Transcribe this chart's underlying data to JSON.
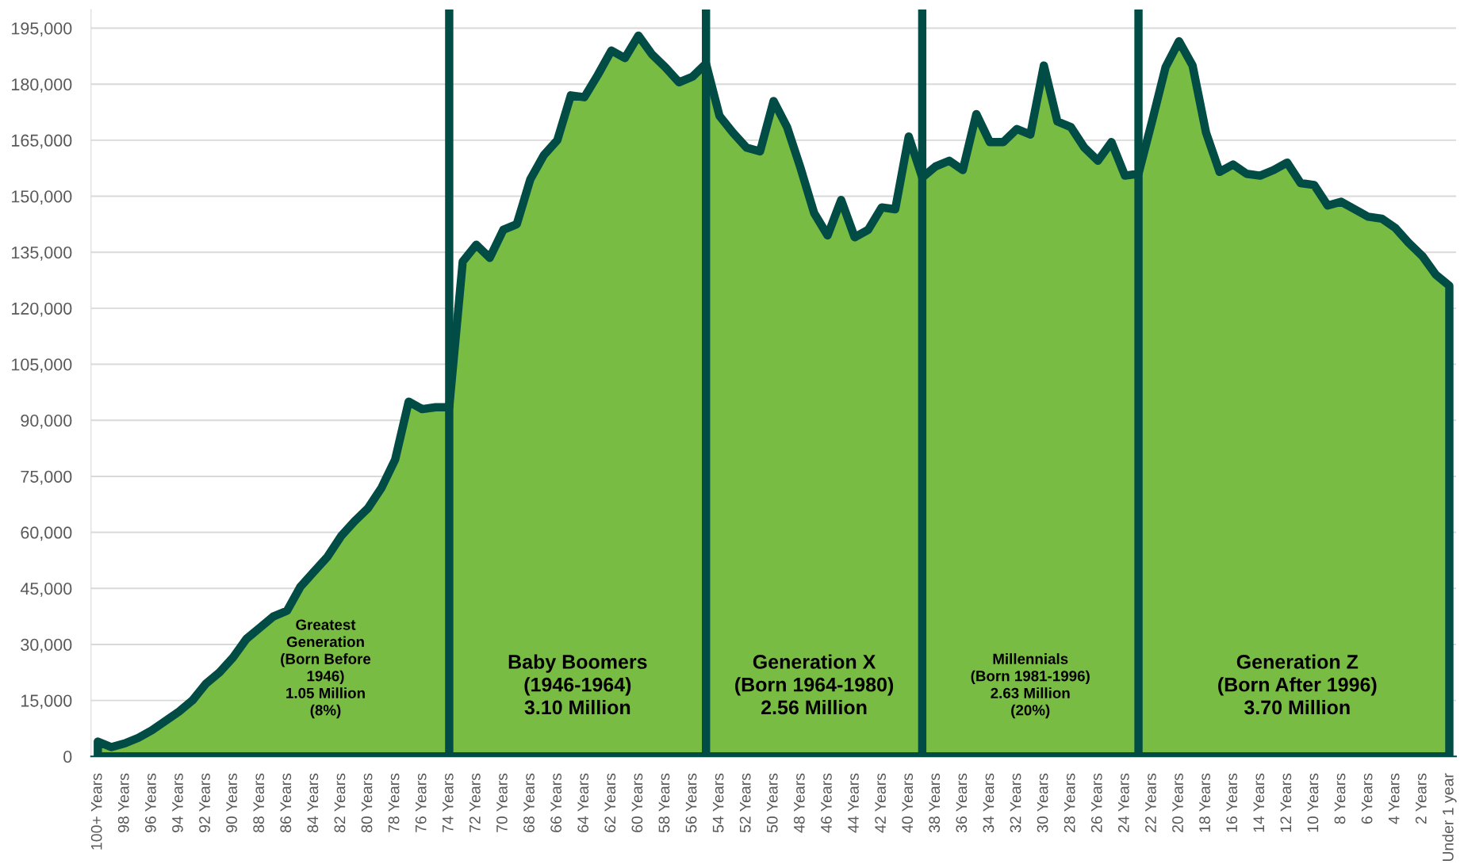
{
  "chart_data": {
    "type": "area",
    "x": [
      100,
      99,
      98,
      97,
      96,
      95,
      94,
      93,
      92,
      91,
      90,
      89,
      88,
      87,
      86,
      85,
      84,
      83,
      82,
      81,
      80,
      79,
      78,
      77,
      76,
      75,
      74,
      73,
      72,
      71,
      70,
      69,
      68,
      67,
      66,
      65,
      64,
      63,
      62,
      61,
      60,
      59,
      58,
      57,
      56,
      55,
      54,
      53,
      52,
      51,
      50,
      49,
      48,
      47,
      46,
      45,
      44,
      43,
      42,
      41,
      40,
      39,
      38,
      37,
      36,
      35,
      34,
      33,
      32,
      31,
      30,
      29,
      28,
      27,
      26,
      25,
      24,
      23,
      22,
      21,
      20,
      19,
      18,
      17,
      16,
      15,
      14,
      13,
      12,
      11,
      10,
      9,
      8,
      7,
      6,
      5,
      4,
      3,
      2,
      1,
      0
    ],
    "values": [
      4000,
      2500,
      3500,
      5000,
      7000,
      9500,
      12000,
      15000,
      19500,
      22500,
      26500,
      31500,
      34500,
      37500,
      39000,
      45500,
      49500,
      53500,
      59000,
      63000,
      66500,
      72000,
      79500,
      95000,
      93000,
      93500,
      93500,
      132500,
      137000,
      133500,
      141000,
      142500,
      154500,
      161000,
      165000,
      177000,
      176500,
      182500,
      189000,
      187000,
      193000,
      188000,
      184500,
      180500,
      182000,
      185500,
      171500,
      167000,
      163000,
      162000,
      175500,
      168500,
      157500,
      145500,
      139500,
      149000,
      139000,
      141000,
      147000,
      146500,
      166000,
      155000,
      158000,
      159500,
      157000,
      172000,
      164500,
      164500,
      168000,
      166500,
      185000,
      170000,
      168500,
      163000,
      159500,
      164500,
      155500,
      156000,
      170000,
      184500,
      191500,
      185000,
      167000,
      156500,
      158500,
      156000,
      155500,
      157000,
      159000,
      153500,
      153000,
      147500,
      148500,
      146500,
      144500,
      144000,
      141500,
      137500,
      134000,
      129000,
      126000
    ],
    "color": "#78bc44",
    "xlim": [
      100.5,
      -0.5
    ],
    "xticks": [
      {
        "value": 100,
        "label": "100+ Years"
      },
      {
        "value": 98,
        "label": "98 Years"
      },
      {
        "value": 96,
        "label": "96 Years"
      },
      {
        "value": 94,
        "label": "94 Years"
      },
      {
        "value": 92,
        "label": "92 Years"
      },
      {
        "value": 90,
        "label": "90 Years"
      },
      {
        "value": 88,
        "label": "88 Years"
      },
      {
        "value": 86,
        "label": "86 Years"
      },
      {
        "value": 84,
        "label": "84 Years"
      },
      {
        "value": 82,
        "label": "82 Years"
      },
      {
        "value": 80,
        "label": "80 Years"
      },
      {
        "value": 78,
        "label": "78 Years"
      },
      {
        "value": 76,
        "label": "76 Years"
      },
      {
        "value": 74,
        "label": "74 Years"
      },
      {
        "value": 72,
        "label": "72 Years"
      },
      {
        "value": 70,
        "label": "70 Years"
      },
      {
        "value": 68,
        "label": "68 Years"
      },
      {
        "value": 66,
        "label": "66 Years"
      },
      {
        "value": 64,
        "label": "64 Years"
      },
      {
        "value": 62,
        "label": "62 Years"
      },
      {
        "value": 60,
        "label": "60 Years"
      },
      {
        "value": 58,
        "label": "58 Years"
      },
      {
        "value": 56,
        "label": "56 Years"
      },
      {
        "value": 54,
        "label": "54 Years"
      },
      {
        "value": 52,
        "label": "52 Years"
      },
      {
        "value": 50,
        "label": "50 Years"
      },
      {
        "value": 48,
        "label": "48 Years"
      },
      {
        "value": 46,
        "label": "46 Years"
      },
      {
        "value": 44,
        "label": "44 Years"
      },
      {
        "value": 42,
        "label": "42 Years"
      },
      {
        "value": 40,
        "label": "40 Years"
      },
      {
        "value": 38,
        "label": "38 Years"
      },
      {
        "value": 36,
        "label": "36 Years"
      },
      {
        "value": 34,
        "label": "34 Years"
      },
      {
        "value": 32,
        "label": "32 Years"
      },
      {
        "value": 30,
        "label": "30 Years"
      },
      {
        "value": 28,
        "label": "28 Years"
      },
      {
        "value": 26,
        "label": "26 Years"
      },
      {
        "value": 24,
        "label": "24 Years"
      },
      {
        "value": 22,
        "label": "22 Years"
      },
      {
        "value": 20,
        "label": "20 Years"
      },
      {
        "value": 18,
        "label": "18 Years"
      },
      {
        "value": 16,
        "label": "16 Years"
      },
      {
        "value": 14,
        "label": "14 Years"
      },
      {
        "value": 12,
        "label": "12 Years"
      },
      {
        "value": 10,
        "label": "10 Years"
      },
      {
        "value": 8,
        "label": "8 Years"
      },
      {
        "value": 6,
        "label": "6 Years"
      },
      {
        "value": 4,
        "label": "4 Years"
      },
      {
        "value": 2,
        "label": "2 Years"
      },
      {
        "value": 0,
        "label": "Under 1 year"
      }
    ],
    "ylim": [
      0,
      200000
    ],
    "yticks": [
      0,
      {
        "value": 15000,
        "label": "15,000"
      },
      {
        "value": 30000,
        "label": "30,000"
      },
      {
        "value": 45000,
        "label": "45,000"
      },
      {
        "value": 60000,
        "label": "60,000"
      },
      {
        "value": 75000,
        "label": "75,000"
      },
      {
        "value": 90000,
        "label": "90,000"
      },
      {
        "value": 105000,
        "label": "105,000"
      },
      {
        "value": 120000,
        "label": "120,000"
      },
      {
        "value": 135000,
        "label": "135,000"
      },
      {
        "value": 150000,
        "label": "150,000"
      },
      {
        "value": 165000,
        "label": "165,000"
      },
      {
        "value": 180000,
        "label": "180,000"
      },
      {
        "value": 195000,
        "label": "195,000"
      }
    ],
    "grid": "y",
    "ref_lines": [
      {
        "axis": "x",
        "value": 74,
        "color": "#014c44"
      },
      {
        "axis": "x",
        "value": 55,
        "color": "#014c44"
      },
      {
        "axis": "x",
        "value": 39,
        "color": "#014c44"
      },
      {
        "axis": "x",
        "value": 23,
        "color": "#014c44"
      }
    ],
    "annotations": [
      "Greatest\nGeneration\n(Born Before\n1946)\n1.05 Million\n(8%)",
      "Baby Boomers\n(1946-1964)\n3.10 Million",
      "Generation X\n(Born 1964-1980)\n2.56 Million",
      "Millennials\n(Born 1981-1996)\n2.63 Million\n(20%)",
      "Generation Z\n(Born After 1996)\n3.70 Million"
    ]
  }
}
